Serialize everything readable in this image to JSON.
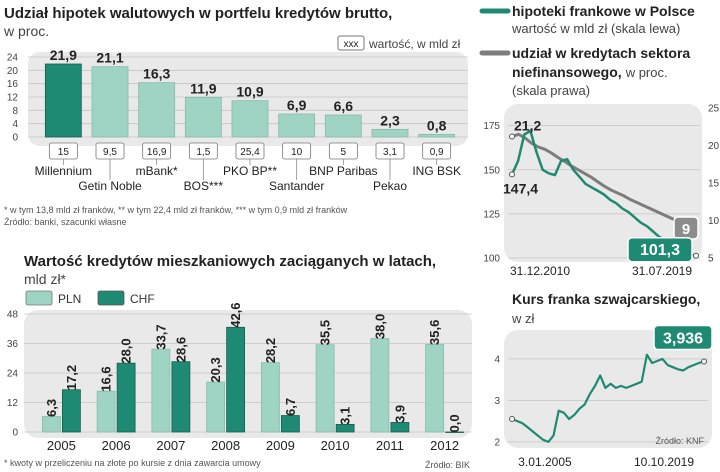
{
  "colors": {
    "teal_dark": "#1f8a73",
    "teal_light": "#9fd3c3",
    "gray_line": "#7d7d7d",
    "panel_bg": "#e9e9e9",
    "text": "#222222"
  },
  "panel1": {
    "title": "Udział hipotek walutowych w portfelu kredytów brutto,",
    "subtitle": "w proc.",
    "legend_box": "xxx",
    "legend_text": "wartość, w mld zł",
    "footnote": "* w tym 13,8 mld zł franków, ** w tym 22,4 mld zł franków, *** w tym 0,9 mld zł franków",
    "source": "Źródło: banki, szacunki własne"
  },
  "panel2": {
    "title": "Wartość kredytów mieszkaniowych zaciąganych w latach,",
    "subtitle": "mld zł*",
    "footnote": "* kwoty w przeliczeniu na złote po kursie z dnia zawarcia umowy",
    "source": "Źródło: BIK"
  },
  "panel3": {
    "legend1_title": "hipoteki frankowe w Polsce",
    "legend1_sub": "wartość w mld zł (skala lewa)",
    "legend2_title_a": "udział w kredytach sektora",
    "legend2_title_b": "niefinansowego,",
    "legend2_title_c": "w proc.",
    "legend2_sub": "(skala prawa)"
  },
  "panel4": {
    "title": "Kurs franka szwajcarskiego,",
    "subtitle": "w zł",
    "source": "Źródło: KNF"
  },
  "chart_data": [
    {
      "type": "bar",
      "categories": [
        "Millennium",
        "Getin Noble",
        "mBank*",
        "BOS***",
        "PKO BP**",
        "Santander",
        "BNP Paribas",
        "Pekao",
        "ING BSK"
      ],
      "values": [
        21.9,
        21.1,
        16.3,
        11.9,
        10.9,
        6.9,
        6.6,
        2.3,
        0.8
      ],
      "labels": [
        "21,9",
        "21,1",
        "16,3",
        "11,9",
        "10,9",
        "6,9",
        "6,6",
        "2,3",
        "0,8"
      ],
      "value_boxes": [
        "15",
        "9,5",
        "16,9",
        "1,5",
        "25,4",
        "10",
        "5",
        "3,1",
        "0,9"
      ],
      "yticks": [
        "0",
        "4",
        "8",
        "12",
        "16",
        "20",
        "24"
      ],
      "ylim": [
        0,
        24
      ]
    },
    {
      "type": "bar",
      "categories": [
        "2005",
        "2006",
        "2007",
        "2008",
        "2009",
        "2010",
        "2011",
        "2012"
      ],
      "series": [
        {
          "name": "PLN",
          "values": [
            6.3,
            16.6,
            33.7,
            20.3,
            28.2,
            35.5,
            38.0,
            35.6
          ],
          "labels": [
            "6,3",
            "16,6",
            "33,7",
            "20,3",
            "28,2",
            "35,5",
            "38,0",
            "35,6"
          ]
        },
        {
          "name": "CHF",
          "values": [
            17.2,
            28.0,
            28.6,
            42.6,
            6.7,
            3.1,
            3.9,
            0.0
          ],
          "labels": [
            "17,2",
            "28,0",
            "28,6",
            "42,6",
            "6,7",
            "3,1",
            "3,9",
            "0,0"
          ]
        }
      ],
      "yticks": [
        "0",
        "12",
        "24",
        "36",
        "48"
      ],
      "ylim": [
        0,
        48
      ]
    },
    {
      "type": "line",
      "x_range": [
        "31.12.2010",
        "31.07.2019"
      ],
      "xticks": [
        "31.12.2010",
        "31.07.2019"
      ],
      "series": [
        {
          "name": "hipoteki frankowe w Polsce",
          "axis": "left",
          "start_value": 147.4,
          "start_label": "147,4",
          "end_value": 101.3,
          "end_label": "101,3",
          "values": [
            147.4,
            155,
            170,
            172,
            160,
            150,
            148,
            147,
            155,
            156,
            150,
            146,
            142,
            140,
            138,
            136,
            133,
            131,
            128,
            126,
            123,
            120,
            118,
            115,
            112,
            110,
            108,
            106,
            104,
            102,
            101.3
          ]
        },
        {
          "name": "udział w kredytach sektora niefinansowego",
          "axis": "right",
          "start_value": 21.2,
          "start_label": "21,2",
          "end_value": 9,
          "end_label": "9",
          "values": [
            21.2,
            21.5,
            21.0,
            20.3,
            19.8,
            19.5,
            19.0,
            18.4,
            17.9,
            17.3,
            16.8,
            16.3,
            15.8,
            15.2,
            14.6,
            14.1,
            13.7,
            13.3,
            12.8,
            12.4,
            12.0,
            11.6,
            11.2,
            10.8,
            10.4,
            10.0,
            9.6,
            9.3,
            9.0
          ]
        }
      ],
      "yticks_left": [
        "100",
        "125",
        "150",
        "175"
      ],
      "ylim_left": [
        100,
        185
      ],
      "yticks_right": [
        "5",
        "10",
        "15",
        "20",
        "25"
      ],
      "ylim_right": [
        5,
        25
      ]
    },
    {
      "type": "line",
      "x_range": [
        "3.01.2005",
        "10.10.2019"
      ],
      "xticks": [
        "3.01.2005",
        "10.10.2019"
      ],
      "series": [
        {
          "name": "kurs CHF",
          "end_value": 3.936,
          "end_label": "3,936",
          "values": [
            2.55,
            2.5,
            2.45,
            2.35,
            2.25,
            2.15,
            2.05,
            2.0,
            2.15,
            2.75,
            2.7,
            2.55,
            2.65,
            2.8,
            2.9,
            3.15,
            3.35,
            3.6,
            3.3,
            3.4,
            3.3,
            3.35,
            3.3,
            3.35,
            3.4,
            3.45,
            4.1,
            3.9,
            3.95,
            4.0,
            3.85,
            3.8,
            3.75,
            3.72,
            3.8,
            3.85,
            3.9,
            3.936
          ]
        }
      ],
      "yticks": [
        "2",
        "3",
        "4"
      ],
      "ylim": [
        1.9,
        4.6
      ]
    }
  ]
}
